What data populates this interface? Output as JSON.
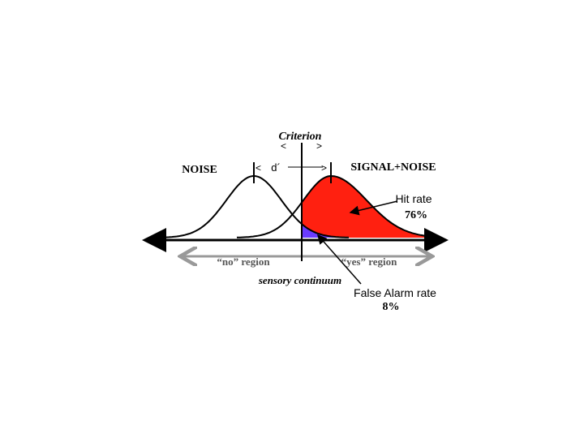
{
  "criterion": "Criterion",
  "noise_label": "NOISE",
  "d_prime": "d´",
  "signal_label": "SIGNAL+NOISE",
  "hit_rate": {
    "label": "Hit rate",
    "value": "76%"
  },
  "regions": [
    "“no” region",
    "“yes” region"
  ],
  "axis_label": "sensory continuum",
  "false_alarm_rate": {
    "label": "False Alarm rate",
    "value": "8%"
  }
}
